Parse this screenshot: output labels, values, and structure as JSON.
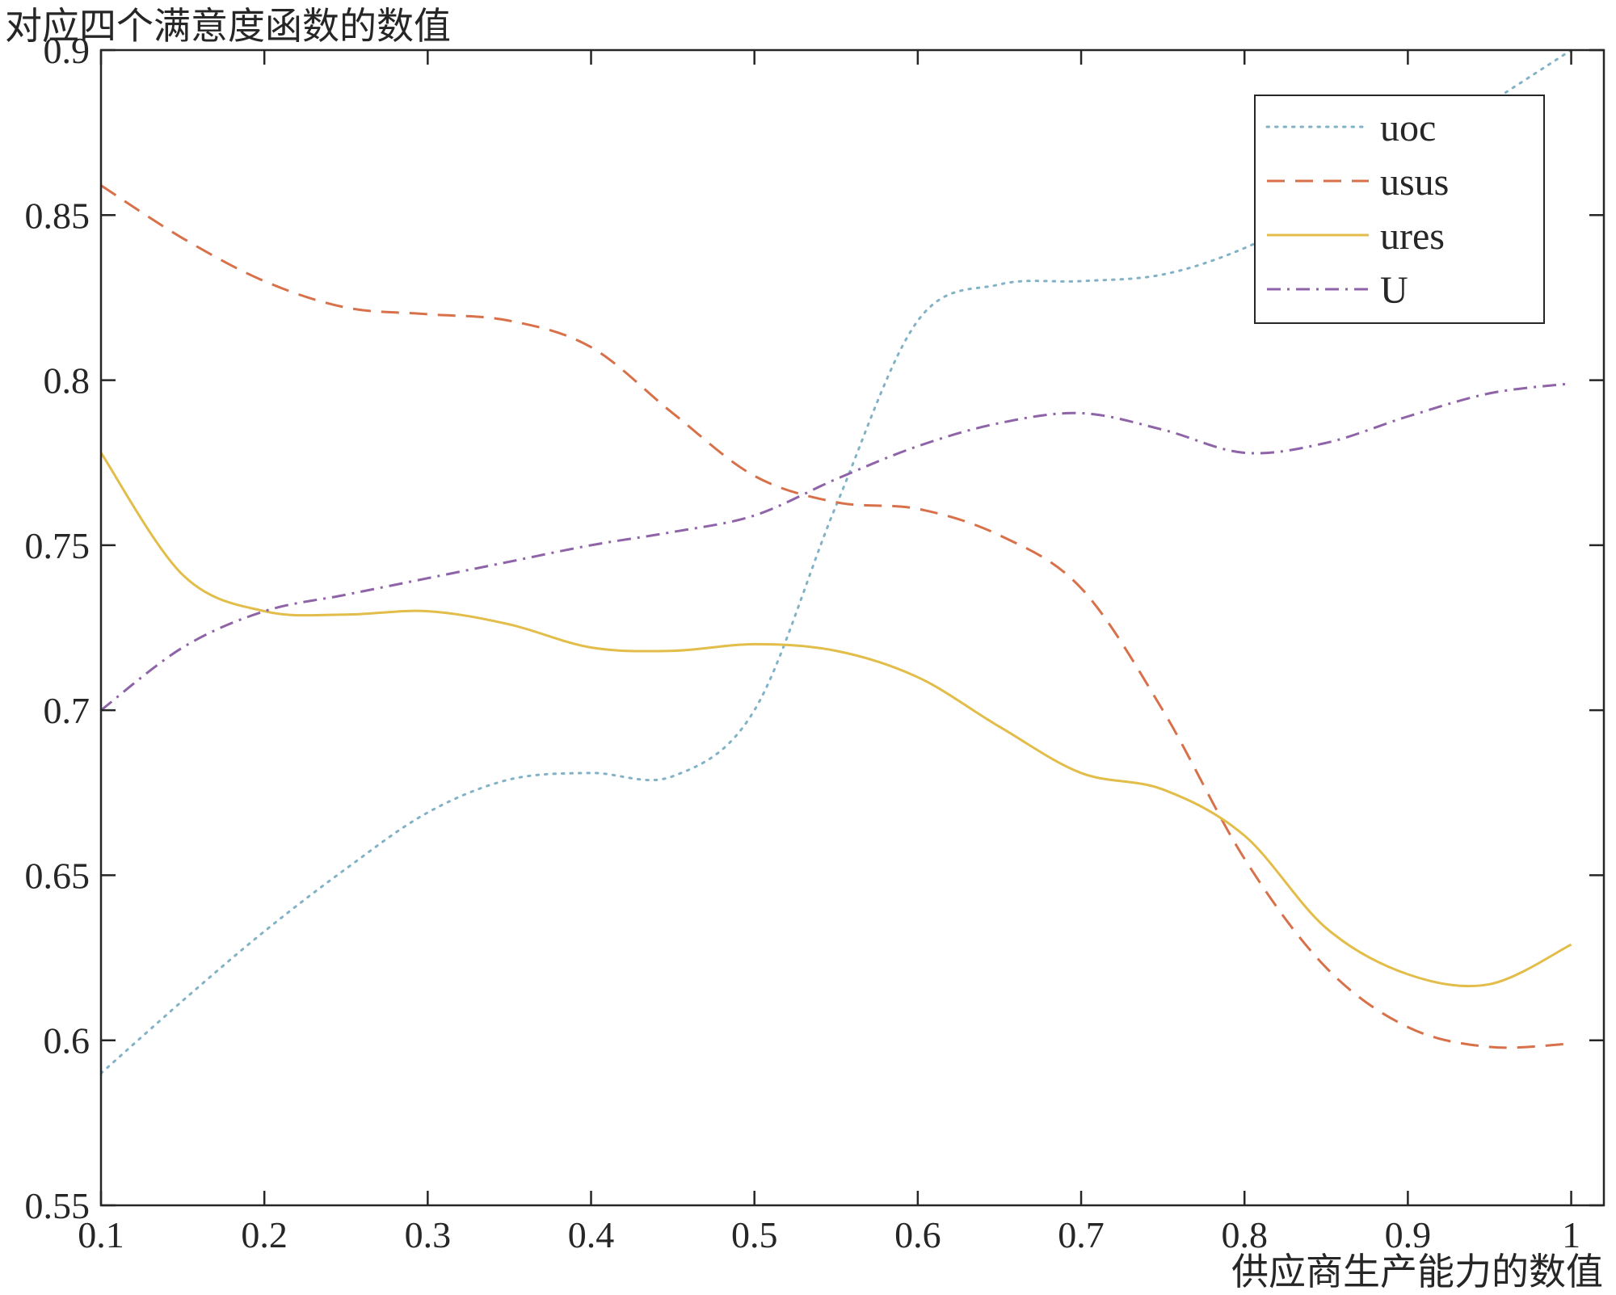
{
  "figure": {
    "title": "对应四个满意度函数的数值",
    "xlabel": "供应商生产能力的数值"
  },
  "chart_data": {
    "type": "line",
    "title": "对应四个满意度函数的数值",
    "xlabel": "供应商生产能力的数值",
    "ylabel": "",
    "xlim": [
      0.1,
      1.02
    ],
    "ylim": [
      0.55,
      0.9
    ],
    "x_ticks": [
      0.1,
      0.2,
      0.3,
      0.4,
      0.5,
      0.6,
      0.7,
      0.8,
      0.9,
      1.0
    ],
    "x_tick_labels": [
      "0.1",
      "0.2",
      "0.3",
      "0.4",
      "0.5",
      "0.6",
      "0.7",
      "0.8",
      "0.9",
      "1"
    ],
    "y_ticks": [
      0.55,
      0.6,
      0.65,
      0.7,
      0.75,
      0.8,
      0.85,
      0.9
    ],
    "y_tick_labels": [
      "0.55",
      "0.6",
      "0.65",
      "0.7",
      "0.75",
      "0.8",
      "0.85",
      "0.9"
    ],
    "grid": false,
    "legend_position": "top-right",
    "axis_color": "#262626",
    "x": [
      0.1,
      0.15,
      0.2,
      0.25,
      0.3,
      0.35,
      0.4,
      0.45,
      0.5,
      0.55,
      0.6,
      0.65,
      0.7,
      0.75,
      0.8,
      0.85,
      0.9,
      0.95,
      1.0
    ],
    "series": [
      {
        "name": "uoc",
        "style": "dotted",
        "color": "#82b2c6",
        "values": [
          0.59,
          0.612,
          0.633,
          0.652,
          0.669,
          0.679,
          0.681,
          0.68,
          0.7,
          0.762,
          0.818,
          0.829,
          0.83,
          0.832,
          0.84,
          0.853,
          0.868,
          0.884,
          0.9
        ]
      },
      {
        "name": "usus",
        "style": "dashed",
        "color": "#d8714a",
        "values": [
          0.859,
          0.843,
          0.83,
          0.822,
          0.82,
          0.818,
          0.81,
          0.79,
          0.771,
          0.763,
          0.761,
          0.753,
          0.737,
          0.7,
          0.655,
          0.622,
          0.604,
          0.598,
          0.599
        ]
      },
      {
        "name": "ures",
        "style": "solid",
        "color": "#e2bd49",
        "values": [
          0.778,
          0.741,
          0.73,
          0.729,
          0.73,
          0.726,
          0.719,
          0.718,
          0.72,
          0.718,
          0.71,
          0.695,
          0.681,
          0.676,
          0.662,
          0.634,
          0.62,
          0.617,
          0.629
        ]
      },
      {
        "name": "U",
        "style": "dashdot",
        "color": "#8f63a8",
        "values": [
          0.7,
          0.719,
          0.73,
          0.735,
          0.74,
          0.745,
          0.75,
          0.754,
          0.759,
          0.77,
          0.78,
          0.787,
          0.79,
          0.785,
          0.778,
          0.781,
          0.789,
          0.796,
          0.799
        ]
      }
    ]
  }
}
